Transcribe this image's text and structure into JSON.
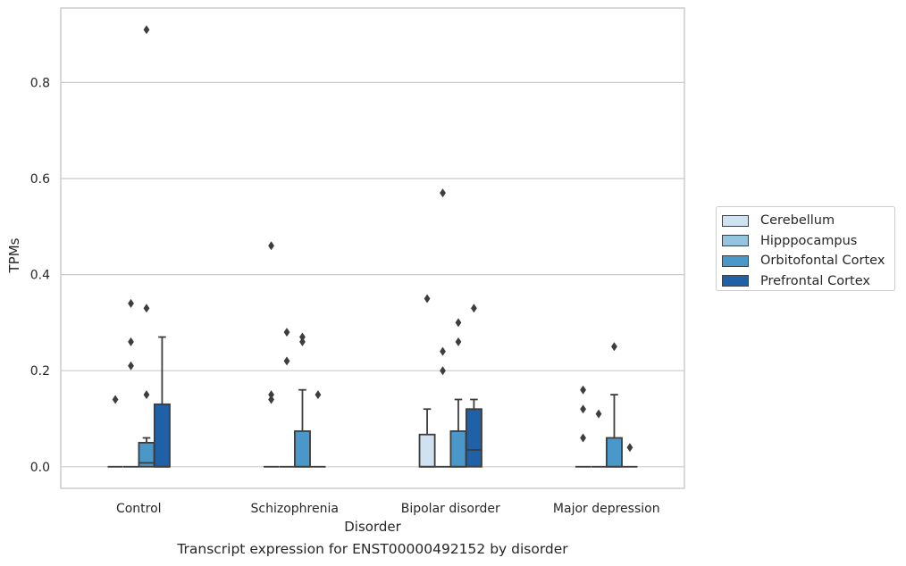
{
  "caption": "Transcript expression for ENST00000492152 by disorder",
  "chart_data": {
    "type": "boxplot",
    "title": "",
    "xlabel": "Disorder",
    "ylabel": "TPMs",
    "categories": [
      "Control",
      "Schizophrenia",
      "Bipolar disorder",
      "Major depression"
    ],
    "ylim": [
      -0.045,
      0.955
    ],
    "yticks": [
      0.0,
      0.2,
      0.4,
      0.6,
      0.8
    ],
    "ytick_labels": [
      "0.0",
      "0.2",
      "0.4",
      "0.6",
      "0.8"
    ],
    "grid": true,
    "legend_position": "outside-right",
    "series": [
      {
        "name": "Cerebellum",
        "color": "#d0e1f2",
        "boxes": [
          {
            "q1": 0,
            "median": 0,
            "q3": 0,
            "whislo": 0,
            "whishi": 0,
            "fliers": [
              0.14
            ]
          },
          {
            "q1": 0,
            "median": 0,
            "q3": 0,
            "whislo": 0,
            "whishi": 0,
            "fliers": [
              0.14,
              0.15,
              0.46
            ]
          },
          {
            "q1": 0,
            "median": 0,
            "q3": 0.067,
            "whislo": 0,
            "whishi": 0.12,
            "fliers": [
              0.35
            ]
          },
          {
            "q1": 0,
            "median": 0,
            "q3": 0,
            "whislo": 0,
            "whishi": 0,
            "fliers": [
              0.06,
              0.12,
              0.16
            ]
          }
        ]
      },
      {
        "name": "Hipppocampus",
        "color": "#94c4df",
        "boxes": [
          {
            "q1": 0,
            "median": 0,
            "q3": 0,
            "whislo": 0,
            "whishi": 0,
            "fliers": [
              0.21,
              0.26,
              0.34
            ]
          },
          {
            "q1": 0,
            "median": 0,
            "q3": 0,
            "whislo": 0,
            "whishi": 0,
            "fliers": [
              0.22,
              0.28
            ]
          },
          {
            "q1": 0,
            "median": 0,
            "q3": 0,
            "whislo": 0,
            "whishi": 0,
            "fliers": [
              0.2,
              0.24,
              0.57
            ]
          },
          {
            "q1": 0,
            "median": 0,
            "q3": 0,
            "whislo": 0,
            "whishi": 0,
            "fliers": [
              0.11
            ]
          }
        ]
      },
      {
        "name": "Orbitofontal Cortex",
        "color": "#4a98c9",
        "boxes": [
          {
            "q1": 0,
            "median": 0.008,
            "q3": 0.05,
            "whislo": 0,
            "whishi": 0.06,
            "fliers": [
              0.15,
              0.33,
              0.91
            ]
          },
          {
            "q1": 0,
            "median": 0,
            "q3": 0.074,
            "whislo": 0,
            "whishi": 0.16,
            "fliers": [
              0.26,
              0.27
            ]
          },
          {
            "q1": 0,
            "median": 0,
            "q3": 0.074,
            "whislo": 0,
            "whishi": 0.14,
            "fliers": [
              0.26,
              0.3
            ]
          },
          {
            "q1": 0,
            "median": 0,
            "q3": 0.06,
            "whislo": 0,
            "whishi": 0.15,
            "fliers": [
              0.25
            ]
          }
        ]
      },
      {
        "name": "Prefrontal Cortex",
        "color": "#2060a7",
        "boxes": [
          {
            "q1": 0,
            "median": 0,
            "q3": 0.13,
            "whislo": 0,
            "whishi": 0.27,
            "fliers": []
          },
          {
            "q1": 0,
            "median": 0,
            "q3": 0,
            "whislo": 0,
            "whishi": 0,
            "fliers": [
              0.15
            ]
          },
          {
            "q1": 0,
            "median": 0.035,
            "q3": 0.12,
            "whislo": 0,
            "whishi": 0.14,
            "fliers": [
              0.33
            ]
          },
          {
            "q1": 0,
            "median": 0,
            "q3": 0,
            "whislo": 0,
            "whishi": 0,
            "fliers": [
              0.04
            ]
          }
        ]
      }
    ]
  }
}
